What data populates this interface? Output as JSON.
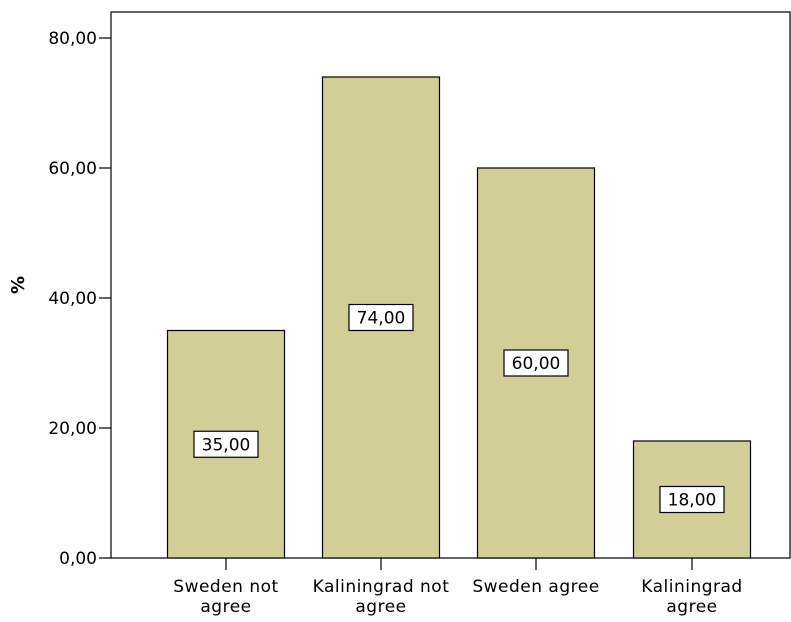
{
  "chart_data": {
    "type": "bar",
    "categories": [
      [
        "Sweden not",
        "agree"
      ],
      [
        "Kaliningrad not",
        "agree"
      ],
      [
        "Sweden agree"
      ],
      [
        "Kaliningrad",
        "agree"
      ]
    ],
    "values": [
      35,
      74,
      60,
      18
    ],
    "value_labels": [
      "35,00",
      "74,00",
      "60,00",
      "18,00"
    ],
    "ylabel": "%",
    "ylim": [
      0,
      84
    ],
    "yticks": [
      0,
      20,
      40,
      60,
      80
    ],
    "ytick_labels": [
      "0,00",
      "20,00",
      "40,00",
      "60,00",
      "80,00"
    ],
    "bar_color": "#d3cd98",
    "bar_edge_color": "#000000",
    "grid": false
  }
}
